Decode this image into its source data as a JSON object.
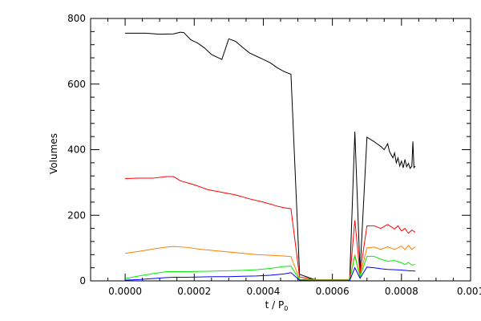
{
  "chart_data": {
    "type": "line",
    "title": "",
    "xlabel": "t / P",
    "xlabel_sub": "0",
    "ylabel": "Volumes",
    "xlim": [
      -0.0001,
      0.001
    ],
    "ylim": [
      0,
      800
    ],
    "x_ticks": [
      0.0,
      0.0002,
      0.0004,
      0.0006,
      0.0008,
      0.001
    ],
    "x_tick_labels": [
      "0.0000",
      "0.0002",
      "0.0004",
      "0.0006",
      "0.0008",
      "0.001"
    ],
    "y_ticks": [
      0,
      200,
      400,
      600,
      800
    ],
    "y_tick_labels": [
      "0",
      "200",
      "400",
      "600",
      "800"
    ],
    "grid": false,
    "series": [
      {
        "color": "#000000",
        "points": [
          [
            0.0,
            755
          ],
          [
            6e-05,
            755
          ],
          [
            0.0001,
            752
          ],
          [
            0.00014,
            753
          ],
          [
            0.00016,
            758
          ],
          [
            0.00017,
            757
          ],
          [
            0.00019,
            735
          ],
          [
            0.00021,
            725
          ],
          [
            0.00023,
            710
          ],
          [
            0.00025,
            690
          ],
          [
            0.00028,
            675
          ],
          [
            0.0003,
            738
          ],
          [
            0.00032,
            730
          ],
          [
            0.00034,
            712
          ],
          [
            0.00036,
            695
          ],
          [
            0.00038,
            685
          ],
          [
            0.0004,
            675
          ],
          [
            0.00042,
            665
          ],
          [
            0.00044,
            650
          ],
          [
            0.00046,
            638
          ],
          [
            0.00048,
            630
          ],
          [
            0.000505,
            20
          ],
          [
            0.00055,
            3
          ],
          [
            0.0006,
            3
          ],
          [
            0.00065,
            3
          ],
          [
            0.000665,
            455
          ],
          [
            0.00068,
            28
          ],
          [
            0.0007,
            438
          ],
          [
            0.00072,
            425
          ],
          [
            0.00074,
            410
          ],
          [
            0.00075,
            400
          ],
          [
            0.00076,
            418
          ],
          [
            0.000765,
            395
          ],
          [
            0.00077,
            385
          ],
          [
            0.000775,
            375
          ],
          [
            0.00078,
            390
          ],
          [
            0.000785,
            360
          ],
          [
            0.00079,
            375
          ],
          [
            0.000795,
            350
          ],
          [
            0.0008,
            365
          ],
          [
            0.000805,
            345
          ],
          [
            0.00081,
            370
          ],
          [
            0.000815,
            348
          ],
          [
            0.00082,
            358
          ],
          [
            0.000825,
            343
          ],
          [
            0.00083,
            350
          ],
          [
            0.000833,
            425
          ],
          [
            0.000836,
            345
          ],
          [
            0.00084,
            350
          ]
        ]
      },
      {
        "color": "#ff0000",
        "points": [
          [
            0.0,
            312
          ],
          [
            4e-05,
            313
          ],
          [
            8e-05,
            313
          ],
          [
            0.00012,
            318
          ],
          [
            0.00014,
            318
          ],
          [
            0.00016,
            305
          ],
          [
            0.0002,
            293
          ],
          [
            0.00024,
            278
          ],
          [
            0.00028,
            270
          ],
          [
            0.00032,
            262
          ],
          [
            0.00036,
            250
          ],
          [
            0.0004,
            240
          ],
          [
            0.00044,
            228
          ],
          [
            0.00046,
            223
          ],
          [
            0.00048,
            220
          ],
          [
            0.000505,
            12
          ],
          [
            0.00055,
            3
          ],
          [
            0.0006,
            3
          ],
          [
            0.00065,
            3
          ],
          [
            0.000665,
            185
          ],
          [
            0.00068,
            22
          ],
          [
            0.0007,
            168
          ],
          [
            0.00072,
            168
          ],
          [
            0.00074,
            160
          ],
          [
            0.00076,
            172
          ],
          [
            0.00078,
            158
          ],
          [
            0.00079,
            168
          ],
          [
            0.0008,
            152
          ],
          [
            0.00081,
            160
          ],
          [
            0.00082,
            145
          ],
          [
            0.00083,
            155
          ],
          [
            0.00084,
            148
          ]
        ]
      },
      {
        "color": "#ff7f00",
        "points": [
          [
            0.0,
            84
          ],
          [
            4e-05,
            90
          ],
          [
            8e-05,
            97
          ],
          [
            0.00012,
            103
          ],
          [
            0.00014,
            105
          ],
          [
            0.00018,
            102
          ],
          [
            0.00022,
            96
          ],
          [
            0.00026,
            92
          ],
          [
            0.0003,
            88
          ],
          [
            0.00034,
            84
          ],
          [
            0.00038,
            80
          ],
          [
            0.00042,
            78
          ],
          [
            0.00046,
            76
          ],
          [
            0.00048,
            74
          ],
          [
            0.000505,
            5
          ],
          [
            0.00055,
            3
          ],
          [
            0.0006,
            3
          ],
          [
            0.00065,
            3
          ],
          [
            0.000665,
            80
          ],
          [
            0.00068,
            15
          ],
          [
            0.0007,
            100
          ],
          [
            0.00072,
            103
          ],
          [
            0.00074,
            96
          ],
          [
            0.00076,
            104
          ],
          [
            0.00078,
            96
          ],
          [
            0.0008,
            106
          ],
          [
            0.00081,
            95
          ],
          [
            0.00082,
            108
          ],
          [
            0.00083,
            96
          ],
          [
            0.00084,
            104
          ]
        ]
      },
      {
        "color": "#00ee00",
        "points": [
          [
            0.0,
            7
          ],
          [
            4e-05,
            15
          ],
          [
            8e-05,
            22
          ],
          [
            0.00012,
            28
          ],
          [
            0.00014,
            28
          ],
          [
            0.00018,
            28
          ],
          [
            0.00022,
            29
          ],
          [
            0.00026,
            30
          ],
          [
            0.0003,
            31
          ],
          [
            0.00034,
            32
          ],
          [
            0.00038,
            34
          ],
          [
            0.00042,
            38
          ],
          [
            0.00046,
            44
          ],
          [
            0.00048,
            45
          ],
          [
            0.000505,
            3
          ],
          [
            0.00055,
            2
          ],
          [
            0.0006,
            2
          ],
          [
            0.00065,
            2
          ],
          [
            0.000665,
            75
          ],
          [
            0.00068,
            12
          ],
          [
            0.0007,
            75
          ],
          [
            0.00072,
            75
          ],
          [
            0.00074,
            66
          ],
          [
            0.00076,
            60
          ],
          [
            0.00078,
            62
          ],
          [
            0.0008,
            55
          ],
          [
            0.00081,
            50
          ],
          [
            0.00082,
            56
          ],
          [
            0.00083,
            48
          ],
          [
            0.00084,
            50
          ]
        ]
      },
      {
        "color": "#0000ff",
        "points": [
          [
            0.0,
            2
          ],
          [
            4e-05,
            4
          ],
          [
            8e-05,
            7
          ],
          [
            0.00012,
            10
          ],
          [
            0.00014,
            11
          ],
          [
            0.00018,
            11
          ],
          [
            0.00022,
            12
          ],
          [
            0.00026,
            13
          ],
          [
            0.0003,
            13
          ],
          [
            0.00034,
            14
          ],
          [
            0.00038,
            15
          ],
          [
            0.00042,
            17
          ],
          [
            0.00046,
            21
          ],
          [
            0.00048,
            25
          ],
          [
            0.000505,
            2
          ],
          [
            0.00055,
            1
          ],
          [
            0.0006,
            1
          ],
          [
            0.00065,
            1
          ],
          [
            0.000665,
            40
          ],
          [
            0.00068,
            8
          ],
          [
            0.0007,
            42
          ],
          [
            0.00072,
            40
          ],
          [
            0.00074,
            37
          ],
          [
            0.00076,
            35
          ],
          [
            0.00078,
            34
          ],
          [
            0.0008,
            33
          ],
          [
            0.00082,
            31
          ],
          [
            0.00084,
            30
          ]
        ]
      }
    ]
  }
}
